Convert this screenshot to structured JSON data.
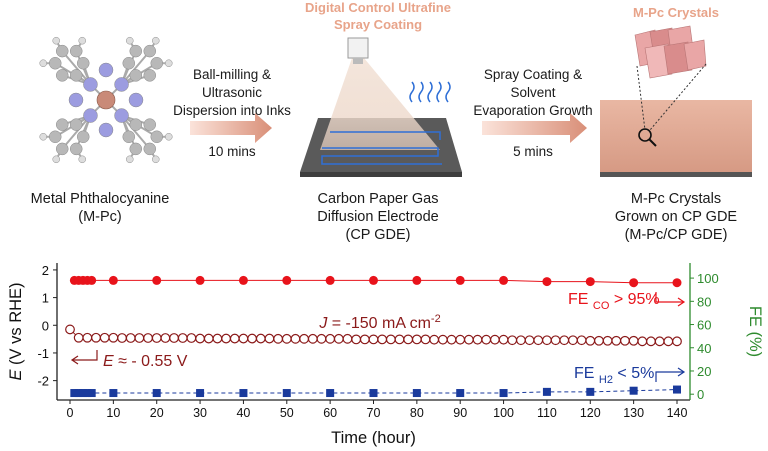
{
  "schematic": {
    "spray_title": [
      "Digital Control Ultrafine",
      "Spray Coating"
    ],
    "crystals_title": "M-Pc Crystals",
    "step1": [
      "Ball-milling &",
      "Ultrasonic",
      "Dispersion into Inks"
    ],
    "step1_time": "10 mins",
    "step2": [
      "Spray Coating &",
      "Solvent",
      "Evaporation Growth"
    ],
    "step2_time": "5 mins",
    "captions": [
      [
        "Metal Phthalocyanine",
        "(M-Pc)"
      ],
      [
        "Carbon Paper Gas",
        "Diffusion Electrode",
        "(CP GDE)"
      ],
      [
        "M-Pc Crystals",
        "Grown on CP GDE",
        "(M-Pc/CP GDE)"
      ]
    ]
  },
  "chart_data": {
    "type": "line",
    "x_label": "Time (hour)",
    "y_label": {
      "italic": "E",
      "rest": " (V vs RHE)"
    },
    "y2_label": "FE (%)",
    "xlim": [
      -3,
      143
    ],
    "xticks": [
      0,
      10,
      20,
      30,
      40,
      50,
      60,
      70,
      80,
      90,
      100,
      110,
      120,
      130,
      140
    ],
    "ylim": [
      -2.7,
      2.25
    ],
    "yticks": [
      -2,
      -1,
      0,
      1,
      2
    ],
    "y2lim": [
      -5,
      113
    ],
    "y2ticks": [
      0,
      20,
      40,
      60,
      80,
      100
    ],
    "series": [
      {
        "color": "#8b1a1a",
        "marker": "circle-open",
        "line_style": "solid",
        "x": [
          0,
          2,
          4,
          6,
          8,
          10,
          12,
          14,
          16,
          18,
          20,
          22,
          24,
          26,
          28,
          30,
          32,
          34,
          36,
          38,
          40,
          42,
          44,
          46,
          48,
          50,
          52,
          54,
          56,
          58,
          60,
          62,
          64,
          66,
          68,
          70,
          72,
          74,
          76,
          78,
          80,
          82,
          84,
          86,
          88,
          90,
          92,
          94,
          96,
          98,
          100,
          102,
          104,
          106,
          108,
          110,
          112,
          114,
          116,
          118,
          120,
          122,
          124,
          126,
          128,
          130,
          132,
          134,
          136,
          138,
          140
        ],
        "values": [
          -0.15,
          -0.45,
          -0.45,
          -0.45,
          -0.45,
          -0.45,
          -0.46,
          -0.46,
          -0.46,
          -0.46,
          -0.46,
          -0.46,
          -0.46,
          -0.46,
          -0.46,
          -0.48,
          -0.48,
          -0.48,
          -0.48,
          -0.48,
          -0.48,
          -0.48,
          -0.48,
          -0.48,
          -0.49,
          -0.49,
          -0.49,
          -0.49,
          -0.49,
          -0.49,
          -0.49,
          -0.49,
          -0.49,
          -0.51,
          -0.51,
          -0.51,
          -0.51,
          -0.51,
          -0.51,
          -0.51,
          -0.51,
          -0.51,
          -0.52,
          -0.52,
          -0.52,
          -0.52,
          -0.52,
          -0.52,
          -0.52,
          -0.52,
          -0.52,
          -0.54,
          -0.54,
          -0.54,
          -0.54,
          -0.54,
          -0.54,
          -0.54,
          -0.54,
          -0.54,
          -0.56,
          -0.56,
          -0.56,
          -0.56,
          -0.56,
          -0.56,
          -0.58,
          -0.58,
          -0.58,
          -0.58,
          -0.58
        ]
      },
      {
        "color": "#e8131b",
        "marker": "circle",
        "line_style": "solid",
        "axis": "y2",
        "x": [
          1,
          2,
          3,
          4,
          5,
          10,
          20,
          30,
          40,
          50,
          60,
          70,
          80,
          90,
          100,
          110,
          120,
          130,
          140
        ],
        "values": [
          98,
          98,
          98,
          98,
          98,
          98,
          98,
          98,
          98,
          98,
          98,
          98,
          98,
          98,
          98,
          97,
          97,
          96,
          96
        ]
      },
      {
        "color": "#1a3a9c",
        "marker": "square",
        "line_style": "dashed",
        "axis": "y2",
        "x": [
          1,
          2,
          3,
          4,
          5,
          10,
          20,
          30,
          40,
          50,
          60,
          70,
          80,
          90,
          100,
          110,
          120,
          130,
          140
        ],
        "values": [
          1,
          1,
          1,
          1,
          1,
          1,
          1,
          1,
          1,
          1,
          1,
          1,
          1,
          1,
          1,
          2,
          2,
          3,
          4
        ]
      }
    ],
    "annotations": {
      "current": {
        "italic": "J",
        "rest": " = -150 mA cm",
        "sup": "-2"
      },
      "potential": {
        "italic": "E",
        "rest": " ≈ - 0.55 V"
      },
      "fe_co": {
        "main": "FE ",
        "sub": "CO",
        "rest": " > 95%"
      },
      "fe_h2": {
        "main": "FE ",
        "sub": "H2",
        "rest": " < 5%"
      }
    }
  }
}
